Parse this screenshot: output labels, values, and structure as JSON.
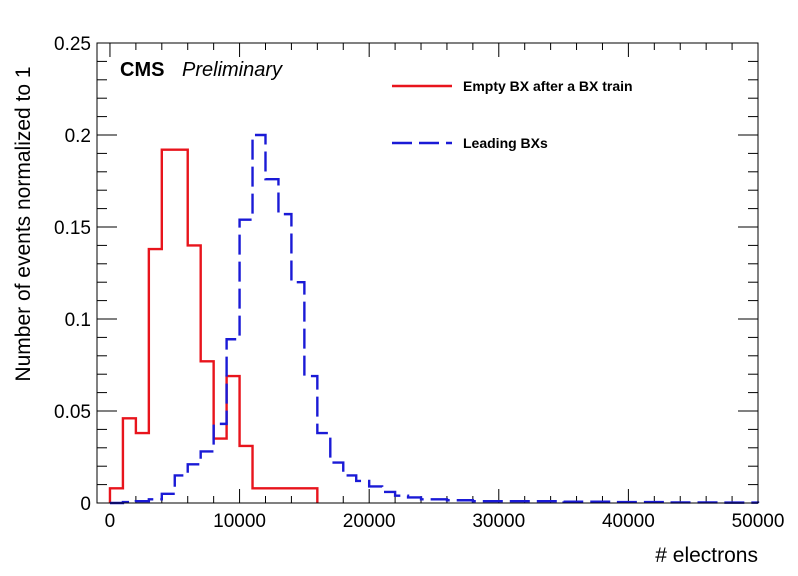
{
  "chart_data": {
    "type": "histogram",
    "xlabel": "# electrons",
    "ylabel": "Number of events normalized to 1",
    "xlim": [
      -1000,
      50000
    ],
    "ylim": [
      0,
      0.25
    ],
    "x_ticks": [
      0,
      10000,
      20000,
      30000,
      40000,
      50000
    ],
    "x_tick_labels": [
      "0",
      "10000",
      "20000",
      "30000",
      "40000",
      "50000"
    ],
    "y_ticks": [
      0,
      0.05,
      0.1,
      0.15,
      0.2,
      0.25
    ],
    "y_tick_labels": [
      "0",
      "0.05",
      "0.1",
      "0.15",
      "0.2",
      "0.25"
    ],
    "grid": false,
    "legend_position": "top-right",
    "annotations": {
      "experiment": "CMS",
      "status": "Preliminary"
    },
    "series": [
      {
        "name": "Empty BX after a BX train",
        "color": "#e8141c",
        "style": "solid",
        "bin_edges": [
          0,
          1000,
          2000,
          3000,
          4000,
          6000,
          7000,
          8000,
          9000,
          10000,
          11000,
          12000,
          16000
        ],
        "values": [
          0.008,
          0.046,
          0.038,
          0.138,
          0.192,
          0.14,
          0.077,
          0.035,
          0.069,
          0.031,
          0.008,
          0.008
        ]
      },
      {
        "name": "Leading BXs",
        "color": "#1a1ad6",
        "style": "dashed",
        "bin_edges": [
          0,
          1000,
          2000,
          3000,
          4000,
          5000,
          6000,
          7000,
          8000,
          9000,
          10000,
          11000,
          12000,
          13000,
          14000,
          15000,
          16000,
          17000,
          18000,
          19000,
          20000,
          21000,
          22000,
          23000,
          24000,
          26000,
          28000,
          31000,
          35000,
          39000,
          43000,
          47000,
          50000
        ],
        "values": [
          0.0,
          0.0005,
          0.001,
          0.002,
          0.005,
          0.015,
          0.021,
          0.028,
          0.043,
          0.089,
          0.154,
          0.2,
          0.176,
          0.157,
          0.12,
          0.069,
          0.038,
          0.022,
          0.015,
          0.012,
          0.009,
          0.006,
          0.004,
          0.003,
          0.002,
          0.0015,
          0.001,
          0.001,
          0.0007,
          0.0005,
          0.0003,
          0.0002
        ]
      }
    ]
  }
}
